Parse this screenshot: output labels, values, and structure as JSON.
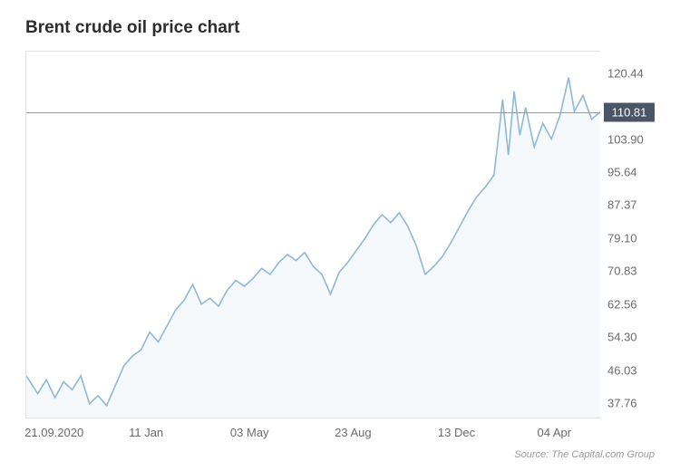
{
  "chart": {
    "type": "line",
    "title": "Brent crude oil price chart",
    "title_fontsize": 19,
    "title_color": "#2d2d2d",
    "background_color": "#ffffff",
    "border_color": "#e2e2e2",
    "line_color": "#8fb8d8",
    "area_fill": "#e8f1f8",
    "area_opacity": 0.45,
    "line_width": 1.6,
    "current_value": 110.81,
    "current_line_color": "#9a9a9a",
    "current_badge_bg": "#4a5568",
    "current_badge_text_color": "#ffffff",
    "ylim": [
      34,
      126
    ],
    "y_ticks": [
      37.76,
      46.03,
      54.3,
      62.56,
      70.83,
      79.1,
      87.37,
      95.64,
      103.9,
      110.81,
      120.44
    ],
    "y_tick_labels": [
      "37.76",
      "46.03",
      "54.30",
      "62.56",
      "70.83",
      "79.10",
      "87.37",
      "95.64",
      "103.90",
      "110.81",
      "120.44"
    ],
    "x_tick_positions": [
      0.05,
      0.21,
      0.39,
      0.57,
      0.75,
      0.92
    ],
    "x_tick_labels": [
      "21.09.2020",
      "11 Jan",
      "03 May",
      "23 Aug",
      "13 Dec",
      "04 Apr"
    ],
    "tick_fontsize": 13,
    "tick_color": "#6b6b6b",
    "series": [
      {
        "x": 0.0,
        "y": 44.5
      },
      {
        "x": 0.02,
        "y": 40.0
      },
      {
        "x": 0.035,
        "y": 43.5
      },
      {
        "x": 0.05,
        "y": 39.0
      },
      {
        "x": 0.065,
        "y": 43.0
      },
      {
        "x": 0.08,
        "y": 41.0
      },
      {
        "x": 0.095,
        "y": 44.5
      },
      {
        "x": 0.11,
        "y": 37.5
      },
      {
        "x": 0.125,
        "y": 39.5
      },
      {
        "x": 0.14,
        "y": 37.0
      },
      {
        "x": 0.155,
        "y": 42.0
      },
      {
        "x": 0.17,
        "y": 47.0
      },
      {
        "x": 0.185,
        "y": 49.5
      },
      {
        "x": 0.2,
        "y": 51.0
      },
      {
        "x": 0.215,
        "y": 55.5
      },
      {
        "x": 0.23,
        "y": 53.0
      },
      {
        "x": 0.245,
        "y": 57.0
      },
      {
        "x": 0.26,
        "y": 61.0
      },
      {
        "x": 0.275,
        "y": 63.5
      },
      {
        "x": 0.29,
        "y": 67.5
      },
      {
        "x": 0.305,
        "y": 62.5
      },
      {
        "x": 0.32,
        "y": 64.0
      },
      {
        "x": 0.335,
        "y": 62.0
      },
      {
        "x": 0.35,
        "y": 66.0
      },
      {
        "x": 0.365,
        "y": 68.5
      },
      {
        "x": 0.38,
        "y": 67.0
      },
      {
        "x": 0.395,
        "y": 69.0
      },
      {
        "x": 0.41,
        "y": 71.5
      },
      {
        "x": 0.425,
        "y": 70.0
      },
      {
        "x": 0.44,
        "y": 73.0
      },
      {
        "x": 0.455,
        "y": 75.0
      },
      {
        "x": 0.47,
        "y": 73.5
      },
      {
        "x": 0.485,
        "y": 75.5
      },
      {
        "x": 0.5,
        "y": 72.0
      },
      {
        "x": 0.515,
        "y": 70.0
      },
      {
        "x": 0.53,
        "y": 65.0
      },
      {
        "x": 0.545,
        "y": 70.5
      },
      {
        "x": 0.56,
        "y": 73.0
      },
      {
        "x": 0.575,
        "y": 76.0
      },
      {
        "x": 0.59,
        "y": 79.0
      },
      {
        "x": 0.605,
        "y": 82.5
      },
      {
        "x": 0.62,
        "y": 85.0
      },
      {
        "x": 0.635,
        "y": 83.0
      },
      {
        "x": 0.65,
        "y": 85.5
      },
      {
        "x": 0.665,
        "y": 82.0
      },
      {
        "x": 0.68,
        "y": 77.0
      },
      {
        "x": 0.695,
        "y": 70.0
      },
      {
        "x": 0.71,
        "y": 72.0
      },
      {
        "x": 0.725,
        "y": 74.5
      },
      {
        "x": 0.74,
        "y": 78.0
      },
      {
        "x": 0.755,
        "y": 82.0
      },
      {
        "x": 0.77,
        "y": 86.0
      },
      {
        "x": 0.785,
        "y": 89.5
      },
      {
        "x": 0.8,
        "y": 92.0
      },
      {
        "x": 0.815,
        "y": 95.0
      },
      {
        "x": 0.83,
        "y": 114.0
      },
      {
        "x": 0.84,
        "y": 100.0
      },
      {
        "x": 0.85,
        "y": 116.0
      },
      {
        "x": 0.86,
        "y": 105.0
      },
      {
        "x": 0.87,
        "y": 112.0
      },
      {
        "x": 0.885,
        "y": 102.0
      },
      {
        "x": 0.9,
        "y": 108.0
      },
      {
        "x": 0.915,
        "y": 104.0
      },
      {
        "x": 0.93,
        "y": 110.0
      },
      {
        "x": 0.945,
        "y": 119.5
      },
      {
        "x": 0.955,
        "y": 111.0
      },
      {
        "x": 0.97,
        "y": 115.0
      },
      {
        "x": 0.985,
        "y": 109.0
      },
      {
        "x": 1.0,
        "y": 110.81
      }
    ]
  },
  "source": "Source: The Capital.com Group",
  "source_color": "#9a9a9a",
  "source_fontsize": 11
}
